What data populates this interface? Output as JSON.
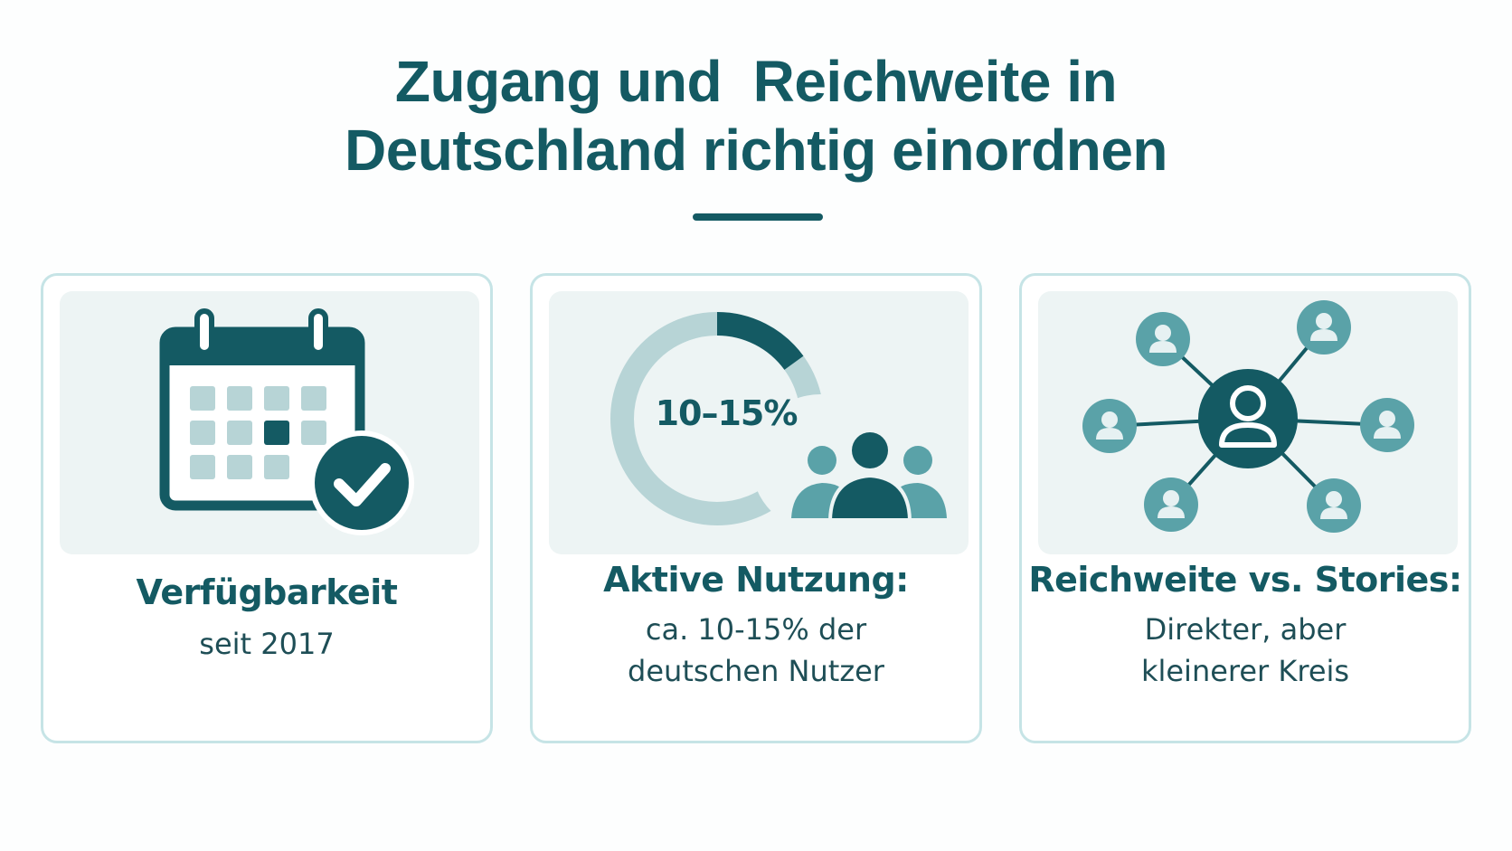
{
  "title": {
    "line1": "Zugang und  Reichweite in",
    "line2": "Deutschland richtig einordnen"
  },
  "cards": [
    {
      "heading": "Verfügbarkeit",
      "body": [
        "seit 2017"
      ],
      "icon": "calendar-check-icon"
    },
    {
      "heading": "Aktive Nutzung:",
      "body": [
        "ca. 10-15% der",
        "deutschen Nutzer"
      ],
      "icon": "donut-people-icon",
      "donut_label": "10–15%",
      "donut_fraction": 0.15
    },
    {
      "heading": "Reichweite vs. Stories:",
      "body": [
        "Direkter, aber",
        "kleinerer Kreis"
      ],
      "icon": "network-people-icon"
    }
  ],
  "colors": {
    "primary": "#145a63",
    "accent": "#5aa2a8",
    "light": "#b7d4d6",
    "panel": "#edf4f4",
    "border": "#c6e4e6"
  }
}
